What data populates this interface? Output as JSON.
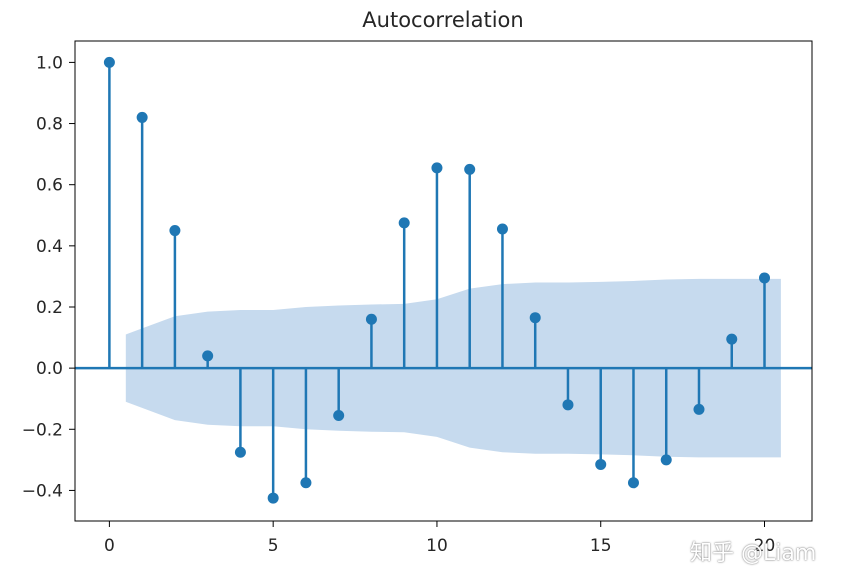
{
  "chart_data": {
    "type": "stem",
    "title": "Autocorrelation",
    "xlabel": "",
    "ylabel": "",
    "xlim": [
      -1.05,
      21.45
    ],
    "ylim": [
      -0.5,
      1.07
    ],
    "x_ticks": [
      0,
      5,
      10,
      15,
      20
    ],
    "x_tick_labels": [
      "0",
      "5",
      "10",
      "15",
      "20"
    ],
    "y_ticks": [
      1.0,
      0.8,
      0.6,
      0.4,
      0.2,
      0.0,
      -0.2,
      -0.4
    ],
    "y_tick_labels": [
      "1.0",
      "0.8",
      "0.6",
      "0.4",
      "0.2",
      "0.0",
      "−0.2",
      "−0.4"
    ],
    "lags": [
      0,
      1,
      2,
      3,
      4,
      5,
      6,
      7,
      8,
      9,
      10,
      11,
      12,
      13,
      14,
      15,
      16,
      17,
      18,
      19,
      20
    ],
    "acf": [
      1.0,
      0.82,
      0.45,
      0.04,
      -0.275,
      -0.425,
      -0.375,
      -0.155,
      0.16,
      0.475,
      0.655,
      0.65,
      0.455,
      0.165,
      -0.12,
      -0.315,
      -0.375,
      -0.3,
      -0.135,
      0.095,
      0.295
    ],
    "confidence_band": {
      "x": [
        0.5,
        1,
        2,
        3,
        4,
        5,
        6,
        7,
        8,
        9,
        10,
        11,
        12,
        13,
        14,
        15,
        16,
        17,
        18,
        19,
        20,
        20.5
      ],
      "upper": [
        0.11,
        0.13,
        0.17,
        0.185,
        0.19,
        0.19,
        0.2,
        0.205,
        0.208,
        0.21,
        0.225,
        0.26,
        0.275,
        0.28,
        0.28,
        0.282,
        0.285,
        0.29,
        0.292,
        0.292,
        0.292,
        0.292
      ],
      "lower": [
        -0.11,
        -0.13,
        -0.17,
        -0.185,
        -0.19,
        -0.19,
        -0.2,
        -0.205,
        -0.208,
        -0.21,
        -0.225,
        -0.26,
        -0.275,
        -0.28,
        -0.28,
        -0.282,
        -0.285,
        -0.29,
        -0.292,
        -0.292,
        -0.292,
        -0.292
      ]
    },
    "colors": {
      "stem": "#1f77b4",
      "band": "#c6daee",
      "axis": "#000000",
      "zero_line": "#1f77b4"
    },
    "grid": false
  },
  "watermark": "知乎 @Liam"
}
